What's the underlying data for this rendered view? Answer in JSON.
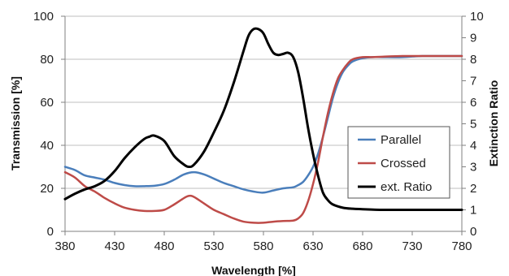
{
  "chart_data": {
    "type": "line",
    "xlabel": "Wavelength [%]",
    "ylabel_left": "Transmission  [%]",
    "ylabel_right": "Extinction Ratio",
    "xlim": [
      380,
      780
    ],
    "ylim_left": [
      0,
      100
    ],
    "ylim_right": [
      0,
      10
    ],
    "x_ticks": [
      380,
      430,
      480,
      530,
      580,
      630,
      680,
      730,
      780
    ],
    "y_ticks_left": [
      0,
      20,
      40,
      60,
      80,
      100
    ],
    "y_ticks_right": [
      0,
      1,
      2,
      3,
      4,
      5,
      6,
      7,
      8,
      9,
      10
    ],
    "grid": "horizontal major gridlines",
    "legend_position": "right",
    "series": [
      {
        "name": "Parallel",
        "axis": "left",
        "color": "#4a7ebb",
        "x": [
          380,
          390,
          400,
          410,
          420,
          430,
          440,
          450,
          460,
          470,
          480,
          490,
          500,
          510,
          520,
          530,
          540,
          550,
          560,
          570,
          580,
          590,
          600,
          610,
          615,
          620,
          625,
          630,
          635,
          640,
          645,
          650,
          655,
          660,
          665,
          670,
          680,
          690,
          700,
          720,
          740,
          760,
          780
        ],
        "y": [
          30,
          28.5,
          26,
          25,
          24,
          22.5,
          21.5,
          21,
          21,
          21.2,
          22,
          24,
          26.5,
          27.5,
          26.5,
          24.5,
          22.5,
          21,
          19.5,
          18.5,
          18,
          19,
          20,
          20.5,
          21.5,
          23,
          26,
          30,
          36,
          44,
          53,
          62,
          69,
          74,
          77,
          79,
          80.5,
          81,
          81,
          81,
          81.5,
          81.5,
          81.5
        ]
      },
      {
        "name": "Crossed",
        "axis": "left",
        "color": "#be4b48",
        "x": [
          380,
          390,
          400,
          410,
          420,
          430,
          440,
          450,
          460,
          470,
          480,
          490,
          500,
          505,
          510,
          520,
          530,
          540,
          550,
          560,
          570,
          580,
          590,
          600,
          610,
          615,
          620,
          625,
          630,
          635,
          640,
          645,
          650,
          655,
          660,
          665,
          670,
          680,
          690,
          700,
          720,
          740,
          760,
          780
        ],
        "y": [
          27.5,
          25,
          21,
          18.5,
          15.5,
          13,
          11,
          10,
          9.5,
          9.5,
          10,
          12.5,
          15.5,
          16.5,
          16,
          13,
          10,
          8,
          6,
          4.5,
          4,
          4,
          4.5,
          4.8,
          5,
          6,
          8.5,
          14,
          22,
          32,
          44,
          55,
          64,
          71,
          75,
          78,
          80,
          81,
          81,
          81.2,
          81.5,
          81.5,
          81.5,
          81.5
        ]
      },
      {
        "name": "ext. Ratio",
        "axis": "right",
        "color": "#000000",
        "x": [
          380,
          390,
          400,
          410,
          420,
          430,
          440,
          450,
          460,
          465,
          470,
          480,
          490,
          500,
          505,
          510,
          520,
          530,
          540,
          550,
          560,
          565,
          570,
          575,
          580,
          585,
          590,
          595,
          600,
          605,
          610,
          615,
          620,
          625,
          630,
          635,
          640,
          645,
          650,
          660,
          670,
          680,
          700,
          720,
          740,
          760,
          780
        ],
        "y": [
          1.5,
          1.75,
          1.95,
          2.1,
          2.35,
          2.8,
          3.4,
          3.9,
          4.3,
          4.4,
          4.45,
          4.2,
          3.5,
          3.1,
          3.0,
          3.1,
          3.7,
          4.6,
          5.6,
          6.9,
          8.4,
          9.1,
          9.4,
          9.4,
          9.2,
          8.7,
          8.3,
          8.2,
          8.25,
          8.3,
          8.1,
          7.4,
          6.2,
          4.8,
          3.6,
          2.6,
          1.8,
          1.45,
          1.25,
          1.1,
          1.05,
          1.03,
          1.0,
          1.0,
          1.0,
          1.0,
          1.0
        ]
      }
    ]
  }
}
